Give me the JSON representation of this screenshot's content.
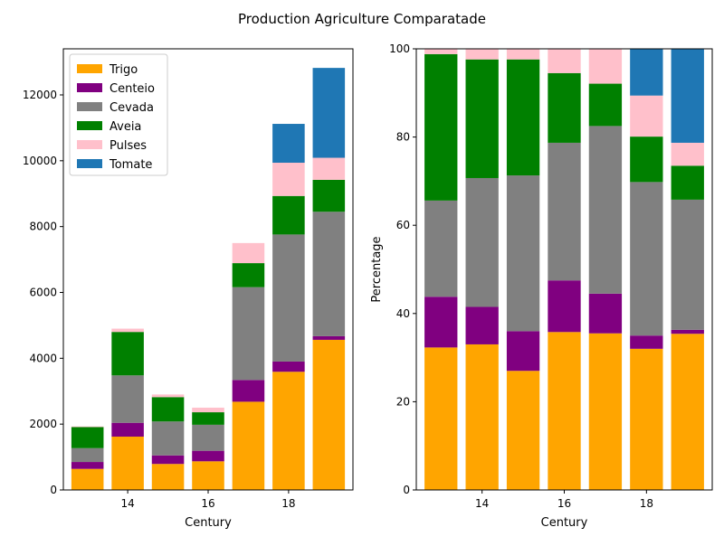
{
  "figure": {
    "title": "Production Agriculture Comparatade"
  },
  "colors": {
    "Trigo": "#ffa500",
    "Centeio": "#800080",
    "Cevada": "#808080",
    "Aveia": "#008000",
    "Pulses": "#ffc0cb",
    "Tomate": "#1f77b4"
  },
  "chart_data": [
    {
      "type": "bar",
      "stacked": true,
      "xlabel": "Century",
      "ylabel": "",
      "x": [
        13,
        14,
        15,
        16,
        17,
        18,
        19
      ],
      "xticks": [
        14,
        16,
        18
      ],
      "xlim": [
        12.4,
        19.6
      ],
      "ylim": [
        0,
        13400
      ],
      "yticks": [
        0,
        2000,
        4000,
        6000,
        8000,
        10000,
        12000
      ],
      "legend": "upper-left",
      "series": [
        {
          "name": "Trigo",
          "values": [
            640,
            1620,
            790,
            870,
            2680,
            3590,
            4560
          ]
        },
        {
          "name": "Centeio",
          "values": [
            210,
            420,
            260,
            320,
            660,
            310,
            110
          ]
        },
        {
          "name": "Cevada",
          "values": [
            420,
            1440,
            1030,
            790,
            2820,
            3860,
            3780
          ]
        },
        {
          "name": "Aveia",
          "values": [
            640,
            1320,
            740,
            380,
            730,
            1170,
            970
          ]
        },
        {
          "name": "Pulses",
          "values": [
            20,
            100,
            80,
            140,
            610,
            1010,
            670
          ]
        },
        {
          "name": "Tomate",
          "values": [
            0,
            0,
            0,
            0,
            0,
            1180,
            2730
          ]
        }
      ]
    },
    {
      "type": "bar",
      "stacked": true,
      "xlabel": "Century",
      "ylabel": "Percentage",
      "x": [
        13,
        14,
        15,
        16,
        17,
        18,
        19
      ],
      "xticks": [
        14,
        16,
        18
      ],
      "xlim": [
        12.4,
        19.6
      ],
      "ylim": [
        0,
        100
      ],
      "yticks": [
        0,
        20,
        40,
        60,
        80,
        100
      ],
      "series": [
        {
          "name": "Trigo",
          "values": [
            32.3,
            33.0,
            27.0,
            35.8,
            35.5,
            32.0,
            35.4
          ]
        },
        {
          "name": "Centeio",
          "values": [
            11.5,
            8.5,
            9.0,
            11.7,
            9.0,
            3.0,
            0.9
          ]
        },
        {
          "name": "Cevada",
          "values": [
            21.8,
            29.2,
            35.3,
            31.2,
            38.0,
            34.8,
            29.5
          ]
        },
        {
          "name": "Aveia",
          "values": [
            33.2,
            26.9,
            26.3,
            15.8,
            9.6,
            10.3,
            7.7
          ]
        },
        {
          "name": "Pulses",
          "values": [
            1.2,
            2.4,
            2.4,
            5.5,
            7.9,
            9.3,
            5.2
          ]
        },
        {
          "name": "Tomate",
          "values": [
            0,
            0,
            0,
            0,
            0,
            10.6,
            21.3
          ]
        }
      ]
    }
  ]
}
